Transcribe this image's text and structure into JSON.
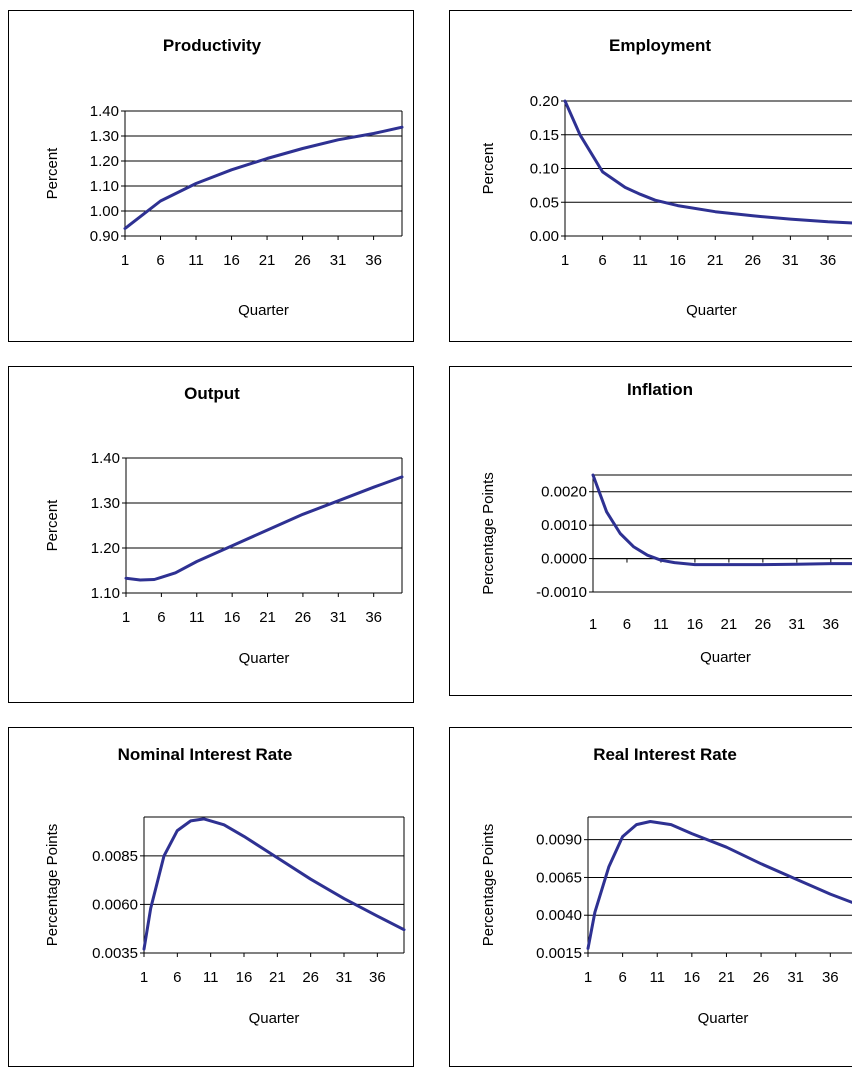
{
  "colors": {
    "line": "#2e3192",
    "grid": "#000000",
    "background": "#ffffff"
  },
  "chart_data": [
    {
      "type": "line",
      "title": "Productivity",
      "xlabel": "Quarter",
      "ylabel": "Percent",
      "ylim": [
        0.9,
        1.4
      ],
      "yticks": [
        "0.90",
        "1.00",
        "1.10",
        "1.20",
        "1.30",
        "1.40"
      ],
      "xticks": [
        "1",
        "6",
        "11",
        "16",
        "21",
        "26",
        "31",
        "36"
      ],
      "x": [
        1,
        6,
        11,
        16,
        21,
        26,
        31,
        36,
        40
      ],
      "values": [
        0.93,
        1.04,
        1.11,
        1.165,
        1.21,
        1.25,
        1.285,
        1.31,
        1.335
      ],
      "grid": true,
      "legend": "none"
    },
    {
      "type": "line",
      "title": "Employment",
      "xlabel": "Quarter",
      "ylabel": "Percent",
      "ylim": [
        0,
        0.2
      ],
      "yticks": [
        "0.00",
        "0.05",
        "0.10",
        "0.15",
        "0.20"
      ],
      "xticks": [
        "1",
        "6",
        "11",
        "16",
        "21",
        "26",
        "31",
        "36"
      ],
      "x": [
        1,
        3,
        6,
        9,
        11,
        13,
        16,
        21,
        26,
        31,
        36,
        40
      ],
      "values": [
        0.2,
        0.15,
        0.095,
        0.072,
        0.062,
        0.053,
        0.045,
        0.036,
        0.03,
        0.025,
        0.021,
        0.019
      ],
      "grid": true,
      "legend": "none"
    },
    {
      "type": "line",
      "title": "Output",
      "xlabel": "Quarter",
      "ylabel": "Percent",
      "ylim": [
        1.1,
        1.4
      ],
      "yticks": [
        "1.10",
        "1.20",
        "1.30",
        "1.40"
      ],
      "xticks": [
        "1",
        "6",
        "11",
        "16",
        "21",
        "26",
        "31",
        "36"
      ],
      "x": [
        1,
        3,
        5,
        6,
        8,
        11,
        16,
        21,
        26,
        31,
        36,
        40
      ],
      "values": [
        1.133,
        1.129,
        1.13,
        1.135,
        1.145,
        1.17,
        1.205,
        1.24,
        1.275,
        1.305,
        1.335,
        1.358
      ],
      "grid": true,
      "legend": "none"
    },
    {
      "type": "line",
      "title": "Inflation",
      "xlabel": "Quarter",
      "ylabel": "Percentage Points",
      "ylim": [
        -0.001,
        0.0025
      ],
      "yticks": [
        "-0.0010",
        "0.0000",
        "0.0010",
        "0.0020"
      ],
      "xticks": [
        "1",
        "6",
        "11",
        "16",
        "21",
        "26",
        "31",
        "36"
      ],
      "x": [
        1,
        3,
        5,
        7,
        9,
        11,
        13,
        16,
        21,
        26,
        31,
        36,
        40
      ],
      "values": [
        0.0025,
        0.0014,
        0.00075,
        0.00035,
        0.0001,
        -5e-05,
        -0.00012,
        -0.00018,
        -0.00018,
        -0.00018,
        -0.00017,
        -0.00015,
        -0.00015
      ],
      "grid": true,
      "legend": "none"
    },
    {
      "type": "line",
      "title": "Nominal Interest Rate",
      "xlabel": "Quarter",
      "ylabel": "Percentage Points",
      "ylim": [
        0.0035,
        0.0105
      ],
      "yticks": [
        "0.0035",
        "0.0060",
        "0.0085"
      ],
      "xticks": [
        "1",
        "6",
        "11",
        "16",
        "21",
        "26",
        "31",
        "36"
      ],
      "x": [
        1,
        2,
        4,
        6,
        8,
        10,
        13,
        16,
        21,
        26,
        31,
        36,
        40
      ],
      "values": [
        0.0037,
        0.0058,
        0.0085,
        0.0098,
        0.0103,
        0.0104,
        0.0101,
        0.0095,
        0.0084,
        0.0073,
        0.0063,
        0.0054,
        0.0047
      ],
      "grid": true,
      "legend": "none"
    },
    {
      "type": "line",
      "title": "Real Interest Rate",
      "xlabel": "Quarter",
      "ylabel": "Percentage Points",
      "ylim": [
        0.0015,
        0.0105
      ],
      "yticks": [
        "0.0015",
        "0.0040",
        "0.0065",
        "0.0090"
      ],
      "xticks": [
        "1",
        "6",
        "11",
        "16",
        "21",
        "26",
        "31",
        "36"
      ],
      "x": [
        1,
        2,
        4,
        6,
        8,
        10,
        13,
        16,
        21,
        26,
        31,
        36,
        40
      ],
      "values": [
        0.0018,
        0.0042,
        0.0072,
        0.0092,
        0.01,
        0.0102,
        0.01,
        0.0094,
        0.0085,
        0.0074,
        0.0064,
        0.0054,
        0.0047
      ],
      "grid": true,
      "legend": "none"
    }
  ]
}
